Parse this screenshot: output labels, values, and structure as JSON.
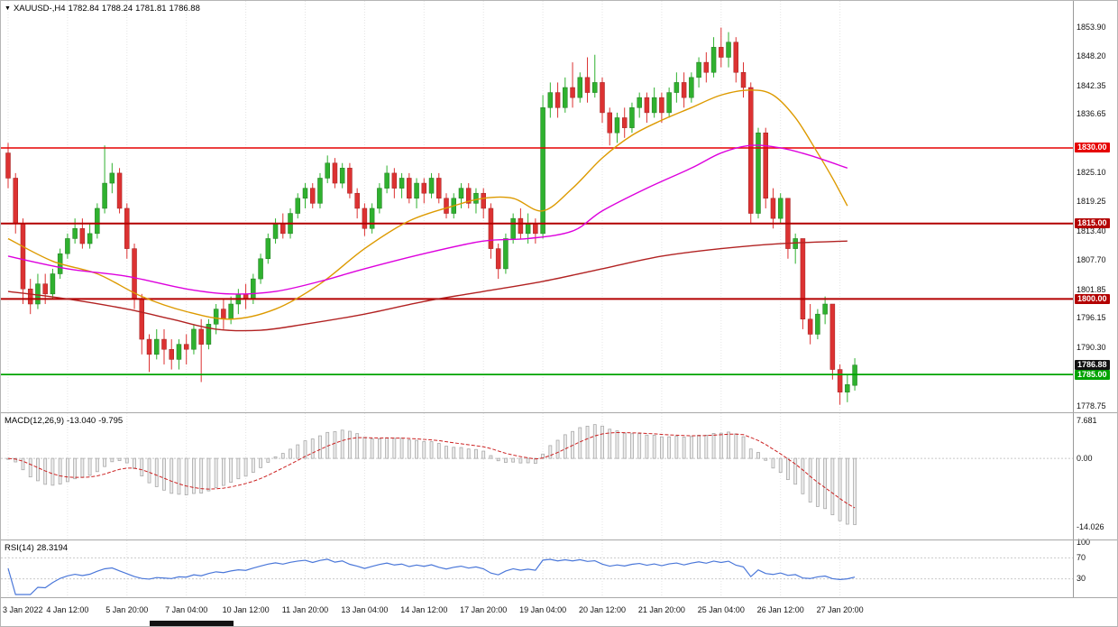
{
  "header": {
    "collapse_arrow": "▼",
    "symbol_period": "XAUUSD-,H4",
    "open": "1782.84",
    "high": "1788.24",
    "low": "1781.81",
    "close": "1786.88"
  },
  "indicators": {
    "macd": {
      "name": "MACD(12,26,9)",
      "value_main": "-13.040",
      "value_signal": "-9.795"
    },
    "rsi": {
      "name": "RSI(14)",
      "value": "28.3194"
    }
  },
  "price_axis": {
    "labels": [
      "1853.90",
      "1848.20",
      "1842.35",
      "1836.65",
      "1825.10",
      "1819.25",
      "1813.40",
      "1807.70",
      "1801.85",
      "1796.15",
      "1790.30",
      "1778.75"
    ]
  },
  "colors": {
    "candle_up": "#2FB12F",
    "candle_down": "#DC3232",
    "macd_signal": "#CC2222",
    "rsi_line": "#4A77D9",
    "grid": "#E4E4E4"
  },
  "chart_data": {
    "type": "candlestick",
    "symbol": "XAUUSD-",
    "timeframe": "H4",
    "ylim": [
      1777.5,
      1859.2
    ],
    "candles_per_gridline": 8,
    "time_gridline_labels": [
      "3 Jan 2022",
      "4 Jan 12:00",
      "5 Jan 20:00",
      "7 Jan 04:00",
      "10 Jan 12:00",
      "11 Jan 20:00",
      "13 Jan 04:00",
      "14 Jan 12:00",
      "17 Jan 20:00",
      "19 Jan 04:00",
      "20 Jan 12:00",
      "21 Jan 20:00",
      "25 Jan 04:00",
      "26 Jan 12:00",
      "27 Jan 20:00"
    ],
    "candles": [
      [
        1829,
        1831,
        1822,
        1824
      ],
      [
        1824,
        1825,
        1813,
        1815
      ],
      [
        1815,
        1816,
        1799,
        1802
      ],
      [
        1802,
        1804,
        1797,
        1799
      ],
      [
        1799,
        1805,
        1798,
        1803
      ],
      [
        1803,
        1805,
        1799,
        1801
      ],
      [
        1801,
        1806,
        1800,
        1805
      ],
      [
        1805,
        1810,
        1804,
        1809
      ],
      [
        1809,
        1813,
        1808,
        1812
      ],
      [
        1812,
        1816,
        1811,
        1814
      ],
      [
        1814,
        1816,
        1810,
        1811
      ],
      [
        1811,
        1815,
        1810,
        1813
      ],
      [
        1813,
        1819,
        1812,
        1818
      ],
      [
        1818,
        1830.5,
        1817,
        1823
      ],
      [
        1823,
        1827,
        1821,
        1825
      ],
      [
        1825,
        1826,
        1817,
        1818
      ],
      [
        1818,
        1819,
        1808,
        1810
      ],
      [
        1810,
        1811,
        1798,
        1800
      ],
      [
        1800,
        1801,
        1789,
        1792
      ],
      [
        1792,
        1793,
        1785.5,
        1789
      ],
      [
        1789,
        1794,
        1788,
        1792
      ],
      [
        1792,
        1794,
        1787,
        1790
      ],
      [
        1790,
        1792,
        1786,
        1788
      ],
      [
        1788,
        1792,
        1786,
        1791
      ],
      [
        1791,
        1793,
        1787,
        1790
      ],
      [
        1790,
        1795,
        1789,
        1794
      ],
      [
        1794,
        1796,
        1783.5,
        1791
      ],
      [
        1791,
        1796,
        1790,
        1795
      ],
      [
        1795,
        1799,
        1793,
        1798
      ],
      [
        1798,
        1800,
        1794,
        1796
      ],
      [
        1796,
        1800.5,
        1795,
        1799
      ],
      [
        1799,
        1802,
        1797,
        1801
      ],
      [
        1801,
        1803,
        1798,
        1800
      ],
      [
        1800,
        1805,
        1799,
        1804
      ],
      [
        1804,
        1809,
        1803,
        1808
      ],
      [
        1808,
        1813,
        1807,
        1812
      ],
      [
        1812,
        1816,
        1811,
        1815
      ],
      [
        1815,
        1817,
        1812,
        1813
      ],
      [
        1813,
        1818,
        1812,
        1817
      ],
      [
        1817,
        1821,
        1816,
        1820
      ],
      [
        1820,
        1823,
        1818,
        1822
      ],
      [
        1822,
        1823,
        1818,
        1819
      ],
      [
        1819,
        1825,
        1818,
        1824
      ],
      [
        1824,
        1828.5,
        1823,
        1827
      ],
      [
        1827,
        1828,
        1822,
        1823
      ],
      [
        1823,
        1827,
        1822,
        1826
      ],
      [
        1826,
        1827,
        1820,
        1821
      ],
      [
        1821,
        1822,
        1816,
        1818
      ],
      [
        1818,
        1819,
        1812.5,
        1814
      ],
      [
        1814,
        1819,
        1813,
        1818
      ],
      [
        1818,
        1823,
        1817,
        1822
      ],
      [
        1822,
        1826.5,
        1821,
        1825
      ],
      [
        1825,
        1826,
        1820,
        1822
      ],
      [
        1822,
        1825,
        1820,
        1824
      ],
      [
        1824,
        1825,
        1819,
        1820
      ],
      [
        1820,
        1824,
        1818,
        1823
      ],
      [
        1823,
        1824,
        1819,
        1821
      ],
      [
        1821,
        1825,
        1820,
        1824
      ],
      [
        1824,
        1825,
        1819,
        1820
      ],
      [
        1820,
        1821,
        1816,
        1817
      ],
      [
        1817,
        1821,
        1816,
        1820
      ],
      [
        1820,
        1823,
        1818,
        1822
      ],
      [
        1822,
        1823,
        1818,
        1819
      ],
      [
        1819,
        1822,
        1817,
        1821
      ],
      [
        1821,
        1822,
        1816,
        1818
      ],
      [
        1818,
        1819,
        1808,
        1810
      ],
      [
        1810,
        1811,
        1804,
        1806
      ],
      [
        1806,
        1813,
        1805,
        1812
      ],
      [
        1812,
        1817,
        1811,
        1816
      ],
      [
        1816,
        1818,
        1812,
        1813
      ],
      [
        1813,
        1817,
        1811,
        1815
      ],
      [
        1815,
        1816,
        1811,
        1813
      ],
      [
        1813,
        1840.5,
        1812,
        1838
      ],
      [
        1838,
        1843,
        1836,
        1841
      ],
      [
        1841,
        1843,
        1836,
        1838
      ],
      [
        1838,
        1844,
        1837,
        1842
      ],
      [
        1842,
        1847,
        1838,
        1840
      ],
      [
        1840,
        1845,
        1839,
        1844
      ],
      [
        1844,
        1848,
        1839,
        1841
      ],
      [
        1841,
        1848.5,
        1840,
        1843
      ],
      [
        1843,
        1844,
        1835,
        1837
      ],
      [
        1837,
        1838,
        1830.5,
        1833
      ],
      [
        1833,
        1837,
        1831,
        1836
      ],
      [
        1836,
        1838,
        1832,
        1834
      ],
      [
        1834,
        1839,
        1833,
        1838
      ],
      [
        1838,
        1841,
        1836,
        1840
      ],
      [
        1840,
        1841,
        1835,
        1837
      ],
      [
        1837,
        1842,
        1836,
        1840
      ],
      [
        1840,
        1841,
        1835,
        1837
      ],
      [
        1837,
        1842,
        1836,
        1841
      ],
      [
        1841,
        1845,
        1839,
        1843
      ],
      [
        1843,
        1845,
        1838,
        1840
      ],
      [
        1840,
        1845,
        1839,
        1844
      ],
      [
        1844,
        1848,
        1842,
        1847
      ],
      [
        1847,
        1849,
        1843,
        1845
      ],
      [
        1845,
        1852,
        1844,
        1850
      ],
      [
        1850,
        1853.9,
        1846,
        1848
      ],
      [
        1848,
        1853,
        1846,
        1851
      ],
      [
        1851,
        1852,
        1843,
        1845
      ],
      [
        1845,
        1847,
        1840,
        1842
      ],
      [
        1842,
        1843,
        1815,
        1817
      ],
      [
        1817,
        1834,
        1816,
        1833
      ],
      [
        1833,
        1834,
        1818,
        1820
      ],
      [
        1820,
        1822,
        1814,
        1816
      ],
      [
        1816,
        1821,
        1815,
        1820
      ],
      [
        1820,
        1820,
        1808,
        1810
      ],
      [
        1810,
        1813,
        1807,
        1812
      ],
      [
        1812,
        1812,
        1794,
        1796
      ],
      [
        1796,
        1799,
        1791,
        1793
      ],
      [
        1793,
        1798,
        1792,
        1797
      ],
      [
        1797,
        1800.5,
        1795,
        1799
      ],
      [
        1799,
        1799,
        1784,
        1786
      ],
      [
        1786,
        1787,
        1779,
        1781.5
      ],
      [
        1781.5,
        1785,
        1779.5,
        1783
      ],
      [
        1782.84,
        1788.24,
        1781.81,
        1786.88
      ]
    ],
    "moving_averages": [
      {
        "name": "ma-fast-orange",
        "color": "#DD9A00",
        "points": [
          [
            0,
            1812
          ],
          [
            6,
            1807.5
          ],
          [
            12,
            1805
          ],
          [
            18,
            1800.5
          ],
          [
            24,
            1797.5
          ],
          [
            30,
            1796
          ],
          [
            36,
            1798
          ],
          [
            42,
            1803
          ],
          [
            48,
            1810
          ],
          [
            54,
            1815.5
          ],
          [
            60,
            1818.5
          ],
          [
            64,
            1820
          ],
          [
            68,
            1820
          ],
          [
            72,
            1817.5
          ],
          [
            76,
            1822
          ],
          [
            80,
            1828
          ],
          [
            84,
            1832.5
          ],
          [
            88,
            1835.5
          ],
          [
            92,
            1838
          ],
          [
            96,
            1840.5
          ],
          [
            100,
            1841.5
          ],
          [
            103,
            1840.5
          ],
          [
            106,
            1836
          ],
          [
            109,
            1829
          ],
          [
            111,
            1824
          ],
          [
            113,
            1818.5
          ]
        ]
      },
      {
        "name": "ma-mid-magenta",
        "color": "#DD00DD",
        "points": [
          [
            0,
            1808.5
          ],
          [
            8,
            1806
          ],
          [
            16,
            1804.5
          ],
          [
            24,
            1802
          ],
          [
            30,
            1801
          ],
          [
            36,
            1801.5
          ],
          [
            42,
            1803.5
          ],
          [
            48,
            1806
          ],
          [
            56,
            1809
          ],
          [
            64,
            1811.5
          ],
          [
            70,
            1812
          ],
          [
            76,
            1813.5
          ],
          [
            80,
            1817.5
          ],
          [
            86,
            1822
          ],
          [
            92,
            1826
          ],
          [
            96,
            1829
          ],
          [
            100,
            1830.5
          ],
          [
            104,
            1830
          ],
          [
            108,
            1828.5
          ],
          [
            113,
            1826
          ]
        ]
      },
      {
        "name": "ma-slow-darkred",
        "color": "#B22222",
        "points": [
          [
            0,
            1801.5
          ],
          [
            8,
            1800
          ],
          [
            16,
            1798
          ],
          [
            22,
            1796
          ],
          [
            28,
            1794
          ],
          [
            34,
            1793.8
          ],
          [
            40,
            1795
          ],
          [
            48,
            1797
          ],
          [
            56,
            1799.5
          ],
          [
            64,
            1801.5
          ],
          [
            72,
            1803.5
          ],
          [
            80,
            1806
          ],
          [
            88,
            1808.5
          ],
          [
            96,
            1810
          ],
          [
            104,
            1811
          ],
          [
            113,
            1811.5
          ]
        ]
      }
    ],
    "hlines": [
      {
        "price": 1830.0,
        "label": "1830.00",
        "color": "#E60000",
        "width": 1.5
      },
      {
        "price": 1815.0,
        "label": "1815.00",
        "color": "#B30000",
        "width": 2
      },
      {
        "price": 1800.0,
        "label": "1800.00",
        "color": "#B30000",
        "width": 2
      },
      {
        "price": 1785.0,
        "label": "1785.00",
        "color": "#00A300",
        "width": 1.8
      }
    ],
    "current_price": {
      "value": 1786.88,
      "label": "1786.88",
      "badge_color": "#111111"
    },
    "macd": {
      "params": [
        12,
        26,
        9
      ],
      "ylim": [
        -16.5,
        9.2
      ],
      "axis_labels": [
        "7.681",
        "0.00",
        "-14.026"
      ],
      "last_main": -13.04,
      "last_signal": -9.795
    },
    "rsi": {
      "period": 14,
      "ylim": [
        0,
        100
      ],
      "levels": [
        70,
        30
      ],
      "axis_labels": [
        "100",
        "70",
        "30"
      ],
      "last_value": 28.3194
    }
  }
}
